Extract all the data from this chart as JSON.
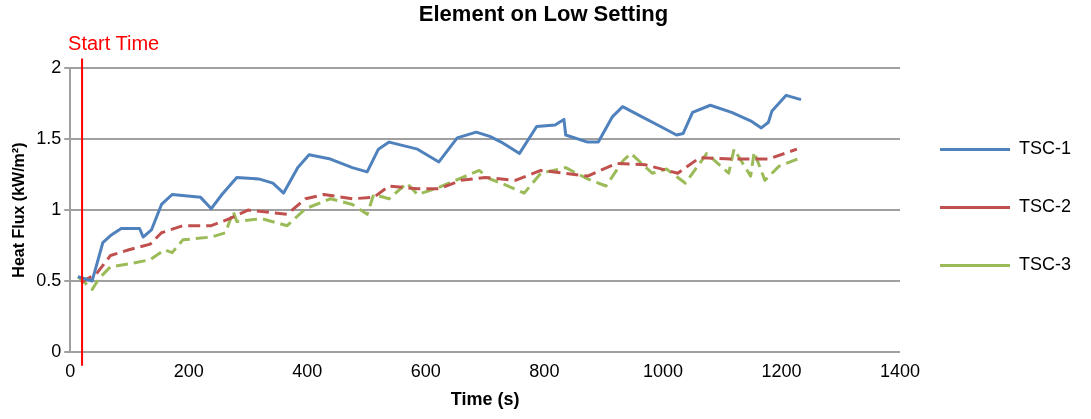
{
  "chart_data": {
    "type": "line",
    "title": "Element on Low Setting",
    "xlabel": "Time (s)",
    "ylabel": "Heat Flux (kW/m²)",
    "xlim": [
      0,
      1400
    ],
    "xticks": [
      0,
      200,
      400,
      600,
      800,
      1000,
      1200,
      1400
    ],
    "ylim": [
      0,
      2
    ],
    "yticks": [
      0,
      0.5,
      1,
      1.5,
      2
    ],
    "grid": "y",
    "legend": "right",
    "marker": "none",
    "ref_lines": [
      {
        "axis": "x",
        "value": 20,
        "label": "Start Time",
        "color": "#ff0000"
      }
    ],
    "series": [
      {
        "name": "TSC-1",
        "color": "#4f81bd",
        "line_style": "solid",
        "x": [
          13,
          37,
          55,
          68,
          86,
          117,
          123,
          137,
          154,
          172,
          220,
          238,
          256,
          281,
          318,
          342,
          360,
          384,
          403,
          439,
          476,
          501,
          520,
          538,
          586,
          622,
          653,
          685,
          708,
          727,
          758,
          787,
          818,
          833,
          836,
          873,
          891,
          915,
          932,
          964,
          996,
          1023,
          1034,
          1050,
          1080,
          1116,
          1148,
          1166,
          1178,
          1184,
          1208,
          1233
        ],
        "values": [
          0.53,
          0.5,
          0.77,
          0.82,
          0.87,
          0.87,
          0.81,
          0.86,
          1.04,
          1.11,
          1.09,
          1.01,
          1.11,
          1.23,
          1.22,
          1.19,
          1.12,
          1.3,
          1.39,
          1.36,
          1.3,
          1.27,
          1.43,
          1.48,
          1.43,
          1.34,
          1.51,
          1.55,
          1.52,
          1.48,
          1.4,
          1.59,
          1.6,
          1.64,
          1.53,
          1.48,
          1.48,
          1.66,
          1.73,
          1.66,
          1.59,
          1.53,
          1.54,
          1.69,
          1.74,
          1.69,
          1.63,
          1.58,
          1.62,
          1.7,
          1.81,
          1.78
        ]
      },
      {
        "name": "TSC-2",
        "color": "#c0504d",
        "line_style": "dashed",
        "x": [
          18,
          44,
          68,
          99,
          135,
          154,
          190,
          238,
          269,
          300,
          366,
          397,
          428,
          476,
          512,
          538,
          586,
          622,
          659,
          700,
          751,
          794,
          873,
          922,
          970,
          1025,
          1062,
          1116,
          1178,
          1226
        ],
        "values": [
          0.49,
          0.55,
          0.68,
          0.72,
          0.76,
          0.84,
          0.89,
          0.89,
          0.94,
          1.0,
          0.97,
          1.08,
          1.11,
          1.08,
          1.09,
          1.17,
          1.15,
          1.15,
          1.21,
          1.23,
          1.21,
          1.28,
          1.24,
          1.33,
          1.32,
          1.26,
          1.37,
          1.36,
          1.36,
          1.43
        ]
      },
      {
        "name": "TSC-3",
        "color": "#9bbb59",
        "line_style": "dashed",
        "x": [
          13,
          37,
          49,
          68,
          99,
          135,
          159,
          172,
          190,
          238,
          262,
          275,
          281,
          323,
          366,
          397,
          439,
          476,
          501,
          512,
          538,
          568,
          586,
          622,
          690,
          708,
          727,
          766,
          794,
          836,
          873,
          904,
          933,
          946,
          982,
          1006,
          1038,
          1074,
          1111,
          1120,
          1148,
          1154,
          1172,
          1196,
          1233
        ],
        "values": [
          0.53,
          0.44,
          0.52,
          0.6,
          0.62,
          0.65,
          0.72,
          0.7,
          0.79,
          0.81,
          0.84,
          0.99,
          0.92,
          0.94,
          0.89,
          1.01,
          1.08,
          1.04,
          0.97,
          1.11,
          1.08,
          1.19,
          1.11,
          1.16,
          1.28,
          1.22,
          1.19,
          1.12,
          1.26,
          1.3,
          1.22,
          1.17,
          1.35,
          1.4,
          1.26,
          1.29,
          1.19,
          1.4,
          1.26,
          1.43,
          1.24,
          1.41,
          1.21,
          1.31,
          1.37
        ]
      }
    ]
  }
}
